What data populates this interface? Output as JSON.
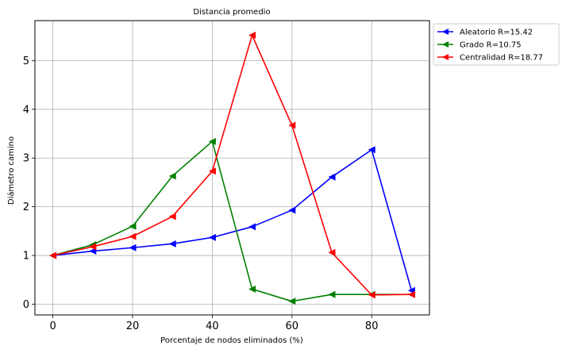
{
  "chart_data": {
    "type": "line",
    "title": "Distancia promedio",
    "xlabel": "Porcentaje de nodos eliminados (%)",
    "ylabel": "Diámetro camino",
    "xlim": [
      -4.5,
      94.5
    ],
    "ylim": [
      -0.22,
      5.82
    ],
    "xticks": [
      0,
      20,
      40,
      60,
      80
    ],
    "yticks": [
      0,
      1,
      2,
      3,
      4,
      5
    ],
    "grid": true,
    "legend_position": "outside-top-right",
    "marker": "left-triangle",
    "series": [
      {
        "name": "Aleatorio R=15.42",
        "color": "#0000ff",
        "x": [
          0,
          10,
          20,
          30,
          40,
          50,
          60,
          70,
          80,
          90
        ],
        "y": [
          1.0,
          1.09,
          1.16,
          1.24,
          1.37,
          1.59,
          1.93,
          2.61,
          3.17,
          0.28
        ]
      },
      {
        "name": "Grado R=10.75",
        "color": "#008000",
        "x": [
          0,
          10,
          20,
          30,
          40,
          50,
          60,
          70,
          80,
          90
        ],
        "y": [
          1.0,
          1.22,
          1.6,
          2.63,
          3.34,
          0.31,
          0.06,
          0.2,
          0.2,
          0.2
        ]
      },
      {
        "name": "Centralidad R=18.77",
        "color": "#ff0000",
        "x": [
          0,
          10,
          20,
          30,
          40,
          50,
          60,
          70,
          80,
          90
        ],
        "y": [
          1.0,
          1.18,
          1.39,
          1.8,
          2.73,
          5.52,
          3.67,
          1.06,
          0.19,
          0.2
        ]
      }
    ]
  }
}
